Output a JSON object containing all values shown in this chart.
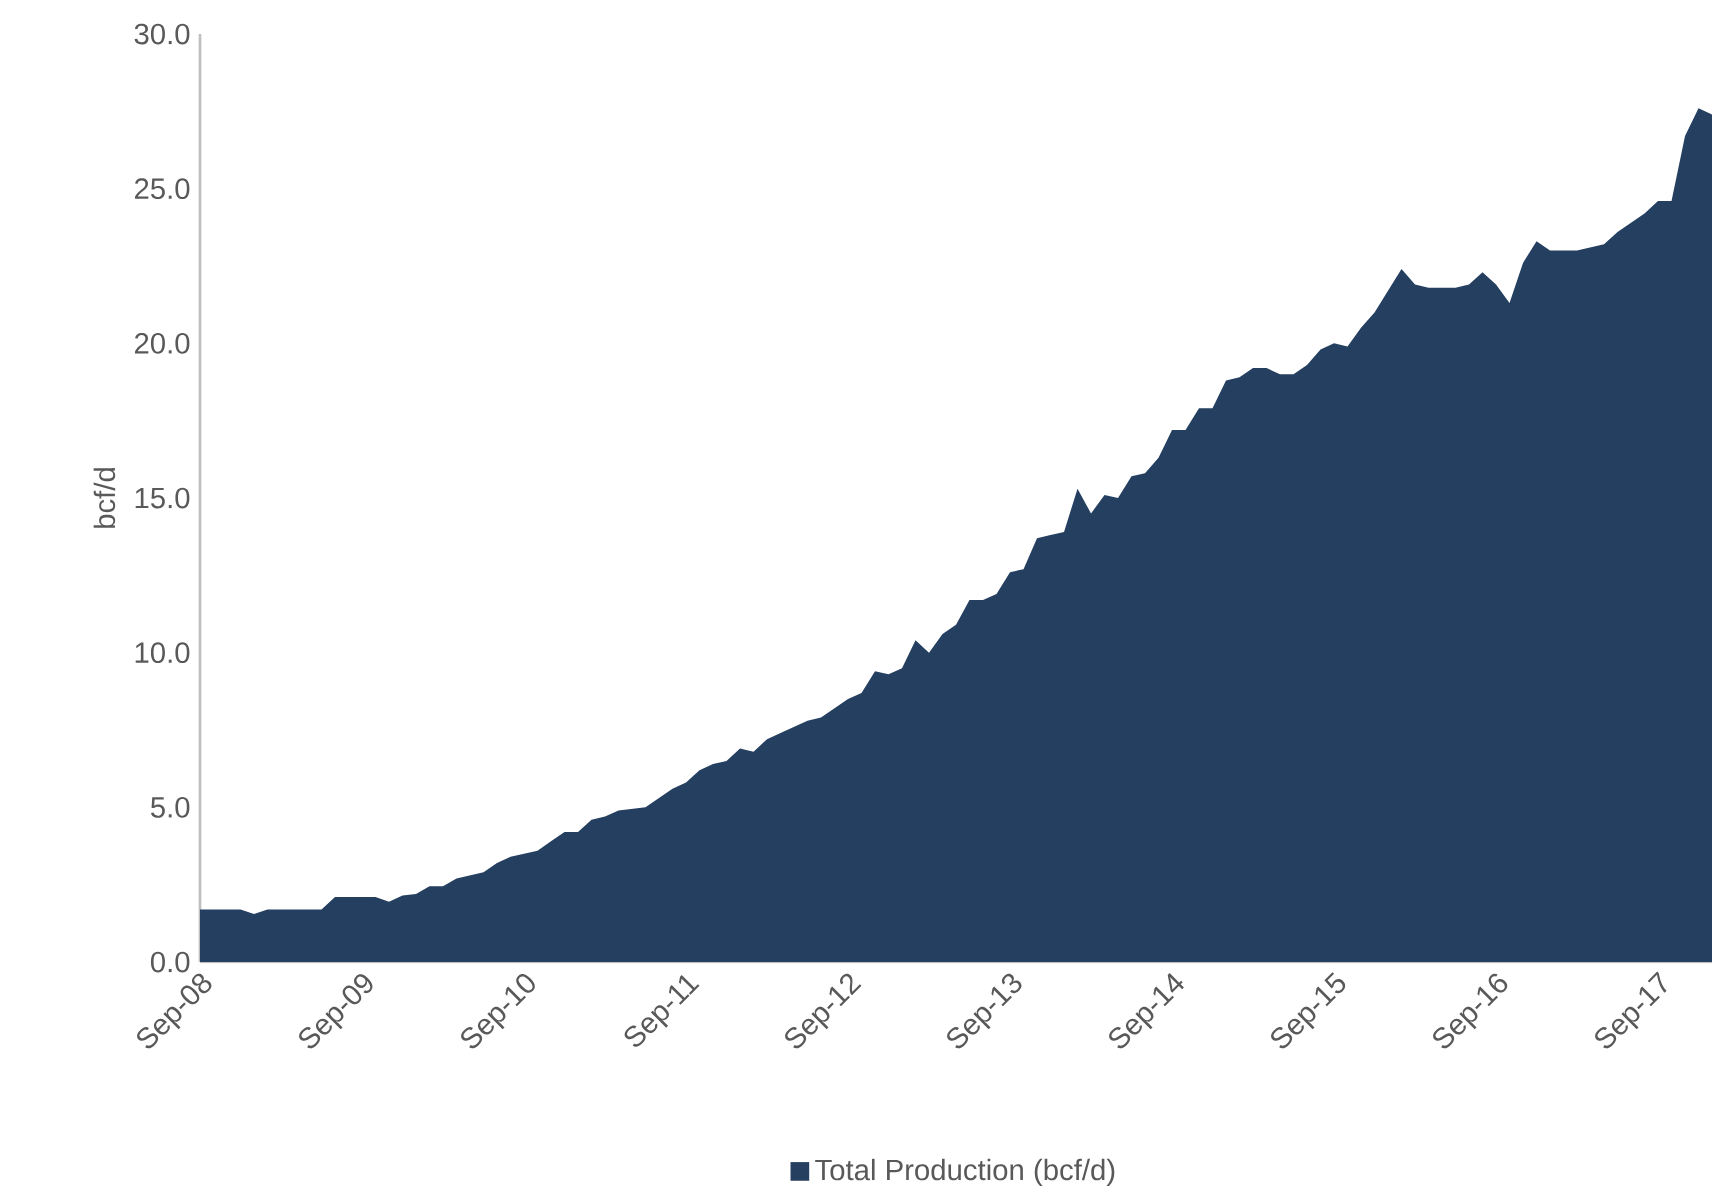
{
  "chart_data": {
    "type": "area",
    "ylabel": "bcf/d",
    "categories": [
      "Sep-08",
      null,
      null,
      null,
      null,
      null,
      null,
      null,
      null,
      null,
      null,
      null,
      "Sep-09",
      null,
      null,
      null,
      null,
      null,
      null,
      null,
      null,
      null,
      null,
      null,
      "Sep-10",
      null,
      null,
      null,
      null,
      null,
      null,
      null,
      null,
      null,
      null,
      null,
      "Sep-11",
      null,
      null,
      null,
      null,
      null,
      null,
      null,
      null,
      null,
      null,
      null,
      "Sep-12",
      null,
      null,
      null,
      null,
      null,
      null,
      null,
      null,
      null,
      null,
      null,
      "Sep-13",
      null,
      null,
      null,
      null,
      null,
      null,
      null,
      null,
      null,
      null,
      null,
      "Sep-14",
      null,
      null,
      null,
      null,
      null,
      null,
      null,
      null,
      null,
      null,
      null,
      "Sep-15",
      null,
      null,
      null,
      null,
      null,
      null,
      null,
      null,
      null,
      null,
      null,
      "Sep-16",
      null,
      null,
      null,
      null,
      null,
      null,
      null,
      null,
      null,
      null,
      null,
      "Sep-17",
      null,
      null,
      null,
      null
    ],
    "series": [
      {
        "name": "Total Production (bcf/d)",
        "color": "#243f60",
        "values": [
          1.7,
          1.7,
          1.7,
          1.7,
          1.55,
          1.7,
          1.7,
          1.7,
          1.7,
          1.7,
          2.1,
          2.1,
          2.1,
          2.1,
          1.95,
          2.15,
          2.2,
          2.45,
          2.45,
          2.7,
          2.8,
          2.9,
          3.2,
          3.4,
          3.5,
          3.6,
          3.9,
          4.2,
          4.2,
          4.6,
          4.7,
          4.9,
          4.95,
          5.0,
          5.3,
          5.6,
          5.8,
          6.2,
          6.4,
          6.5,
          6.9,
          6.8,
          7.2,
          7.4,
          7.6,
          7.8,
          7.9,
          8.2,
          8.5,
          8.7,
          9.4,
          9.3,
          9.5,
          10.4,
          10.0,
          10.6,
          10.9,
          11.7,
          11.7,
          11.9,
          12.6,
          12.7,
          13.7,
          13.8,
          13.9,
          15.3,
          14.5,
          15.1,
          15.0,
          15.7,
          15.8,
          16.3,
          17.2,
          17.2,
          17.9,
          17.9,
          18.8,
          18.9,
          19.2,
          19.2,
          19.0,
          19.0,
          19.3,
          19.8,
          20.0,
          19.9,
          20.5,
          21.0,
          21.7,
          22.4,
          21.9,
          21.8,
          21.8,
          21.8,
          21.9,
          22.3,
          21.9,
          21.3,
          22.6,
          23.3,
          23.0,
          23.0,
          23.0,
          23.1,
          23.2,
          23.6,
          23.9,
          24.2,
          24.6,
          24.6,
          26.7,
          27.6,
          27.4
        ]
      }
    ],
    "ylim": [
      0,
      30
    ],
    "yticks": [
      {
        "value": 0,
        "label": "0.0"
      },
      {
        "value": 5,
        "label": "5.0"
      },
      {
        "value": 10,
        "label": "10.0"
      },
      {
        "value": 15,
        "label": "15.0"
      },
      {
        "value": 20,
        "label": "20.0"
      },
      {
        "value": 25,
        "label": "25.0"
      },
      {
        "value": 30,
        "label": "30.0"
      }
    ],
    "legend": "bottom"
  }
}
